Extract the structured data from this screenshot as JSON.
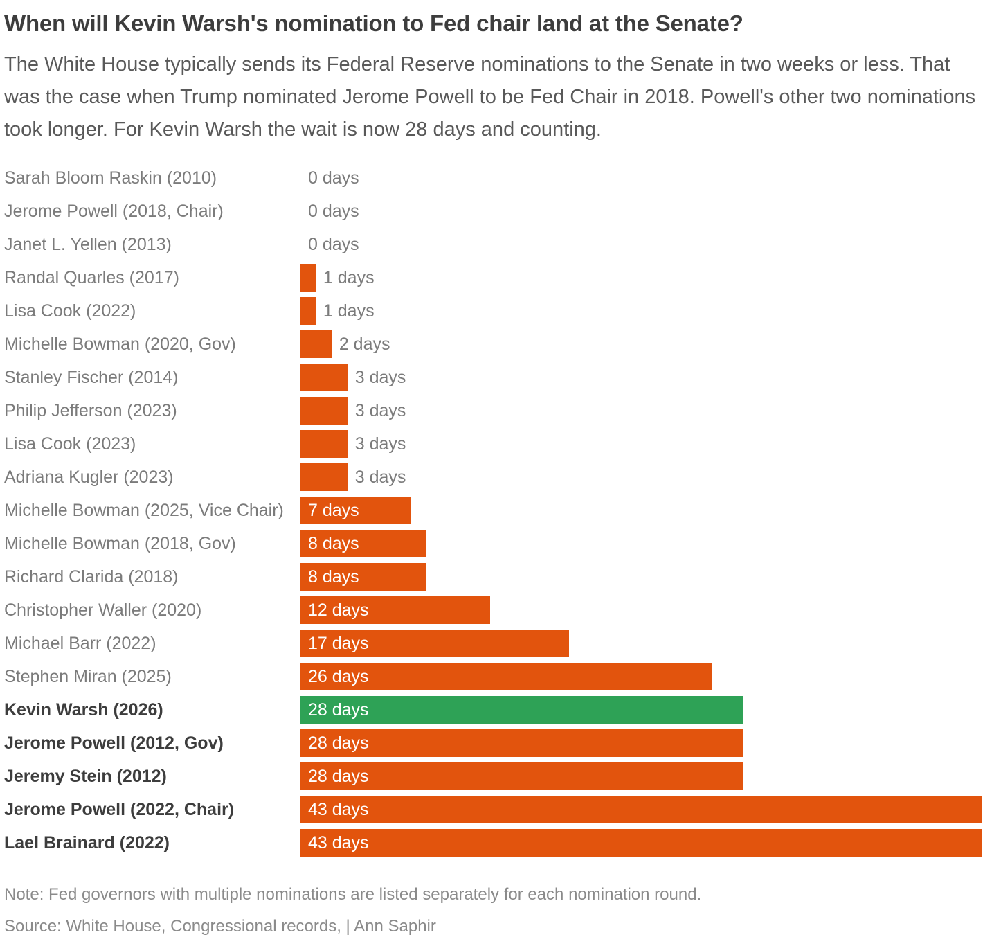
{
  "header": {
    "title": "When will Kevin Warsh's nomination to Fed chair land at the Senate?",
    "subtitle": "The White House typically sends its Federal Reserve nominations to the Senate in two weeks or less. That was the case when Trump nominated Jerome Powell to be Fed Chair in 2018. Powell's other two nominations took longer. For Kevin Warsh the wait is now 28 days and counting."
  },
  "chart_data": {
    "type": "bar",
    "orientation": "horizontal",
    "unit": "days",
    "xlim": [
      0,
      43
    ],
    "grid": false,
    "legend": "none",
    "value_label_inside_threshold_days": 7,
    "colors": {
      "default_bar": "#E2540D",
      "highlight_bar": "#2EA256",
      "label_regular": "#7B7B7B",
      "label_bold": "#3D3D3D",
      "value_outside": "#7B7B7B",
      "value_inside": "#FFFFFF"
    },
    "rows": [
      {
        "name": "Sarah Bloom Raskin (2010)",
        "days": 0,
        "value_label": "0 days",
        "bold": false,
        "highlight": false
      },
      {
        "name": "Jerome Powell (2018, Chair)",
        "days": 0,
        "value_label": "0 days",
        "bold": false,
        "highlight": false
      },
      {
        "name": "Janet L. Yellen (2013)",
        "days": 0,
        "value_label": "0 days",
        "bold": false,
        "highlight": false
      },
      {
        "name": "Randal Quarles (2017)",
        "days": 1,
        "value_label": "1 days",
        "bold": false,
        "highlight": false
      },
      {
        "name": "Lisa Cook (2022)",
        "days": 1,
        "value_label": "1 days",
        "bold": false,
        "highlight": false
      },
      {
        "name": "Michelle Bowman (2020, Gov)",
        "days": 2,
        "value_label": "2 days",
        "bold": false,
        "highlight": false
      },
      {
        "name": "Stanley Fischer (2014)",
        "days": 3,
        "value_label": "3 days",
        "bold": false,
        "highlight": false
      },
      {
        "name": "Philip Jefferson (2023)",
        "days": 3,
        "value_label": "3 days",
        "bold": false,
        "highlight": false
      },
      {
        "name": "Lisa Cook (2023)",
        "days": 3,
        "value_label": "3 days",
        "bold": false,
        "highlight": false
      },
      {
        "name": "Adriana Kugler (2023)",
        "days": 3,
        "value_label": "3 days",
        "bold": false,
        "highlight": false
      },
      {
        "name": "Michelle Bowman (2025, Vice Chair)",
        "days": 7,
        "value_label": "7 days",
        "bold": false,
        "highlight": false
      },
      {
        "name": "Michelle Bowman (2018, Gov)",
        "days": 8,
        "value_label": "8 days",
        "bold": false,
        "highlight": false
      },
      {
        "name": "Richard Clarida (2018)",
        "days": 8,
        "value_label": "8 days",
        "bold": false,
        "highlight": false
      },
      {
        "name": "Christopher Waller (2020)",
        "days": 12,
        "value_label": "12 days",
        "bold": false,
        "highlight": false
      },
      {
        "name": "Michael Barr (2022)",
        "days": 17,
        "value_label": "17 days",
        "bold": false,
        "highlight": false
      },
      {
        "name": "Stephen Miran (2025)",
        "days": 26,
        "value_label": "26 days",
        "bold": false,
        "highlight": false
      },
      {
        "name": "Kevin Warsh (2026)",
        "days": 28,
        "value_label": "28 days",
        "bold": true,
        "highlight": true
      },
      {
        "name": "Jerome Powell (2012, Gov)",
        "days": 28,
        "value_label": "28 days",
        "bold": true,
        "highlight": false
      },
      {
        "name": "Jeremy Stein (2012)",
        "days": 28,
        "value_label": "28 days",
        "bold": true,
        "highlight": false
      },
      {
        "name": "Jerome Powell (2022, Chair)",
        "days": 43,
        "value_label": "43 days",
        "bold": true,
        "highlight": false
      },
      {
        "name": "Lael Brainard (2022)",
        "days": 43,
        "value_label": "43 days",
        "bold": true,
        "highlight": false
      }
    ]
  },
  "footer": {
    "note": "Note: Fed governors with multiple nominations are listed separately for each nomination round.",
    "source": "Source: White House, Congressional records,  | Ann Saphir"
  }
}
